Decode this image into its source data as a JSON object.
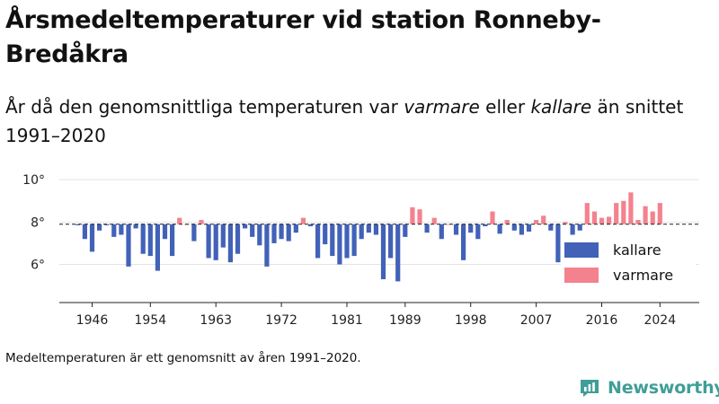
{
  "header": {
    "title": "Årsmedeltemperaturer vid station Ronneby-Bredåkra",
    "subtitle_parts": [
      "År då den genomsnittliga temperaturen var ",
      "varmare",
      " eller ",
      "kallare",
      " än snittet 1991–2020"
    ]
  },
  "footnote": "Medeltemperaturen är ett genomsnitt av åren 1991–2020.",
  "brand": {
    "name": "Newsworthy"
  },
  "colors": {
    "kallare": "#4262b8",
    "varmare": "#f4828e",
    "baseline": "#333333",
    "grid": "#e4e4e4"
  },
  "chart_data": {
    "type": "bar",
    "title": "Årsmedeltemperaturer vid station Ronneby-Bredåkra",
    "baseline": 7.9,
    "ylim": [
      4.2,
      10.6
    ],
    "yticks": [
      6,
      8,
      10
    ],
    "ytick_labels": [
      "6°",
      "8°",
      "10°"
    ],
    "xticks": [
      1946,
      1954,
      1963,
      1972,
      1981,
      1989,
      1998,
      2007,
      2016,
      2024
    ],
    "legend": {
      "placement": "right",
      "entries": [
        {
          "key": "kallare",
          "label": "kallare"
        },
        {
          "key": "varmare",
          "label": "varmare"
        }
      ]
    },
    "grid": true,
    "years": [
      1944,
      1945,
      1946,
      1947,
      1948,
      1949,
      1950,
      1951,
      1952,
      1953,
      1954,
      1955,
      1956,
      1957,
      1958,
      1959,
      1960,
      1961,
      1962,
      1963,
      1964,
      1965,
      1966,
      1967,
      1968,
      1969,
      1970,
      1971,
      1972,
      1973,
      1974,
      1975,
      1976,
      1977,
      1978,
      1979,
      1980,
      1981,
      1982,
      1983,
      1984,
      1985,
      1986,
      1987,
      1988,
      1989,
      1990,
      1991,
      1992,
      1993,
      1994,
      1995,
      1996,
      1997,
      1998,
      1999,
      2000,
      2001,
      2002,
      2003,
      2004,
      2005,
      2006,
      2007,
      2008,
      2009,
      2010,
      2011,
      2012,
      2013,
      2014,
      2015,
      2016,
      2017,
      2018,
      2019,
      2020,
      2021,
      2022,
      2023,
      2024
    ],
    "values": [
      7.85,
      7.2,
      6.6,
      7.6,
      7.85,
      7.3,
      7.4,
      5.9,
      7.7,
      6.5,
      6.4,
      5.7,
      7.2,
      6.4,
      8.2,
      7.9,
      7.1,
      8.1,
      6.3,
      6.2,
      6.8,
      6.1,
      6.5,
      7.7,
      7.3,
      6.9,
      5.9,
      7.0,
      7.2,
      7.1,
      7.5,
      8.2,
      7.8,
      6.3,
      6.95,
      6.4,
      6.0,
      6.3,
      6.4,
      7.2,
      7.5,
      7.4,
      5.3,
      6.3,
      5.2,
      7.3,
      8.7,
      8.6,
      7.5,
      8.2,
      7.2,
      7.9,
      7.4,
      6.2,
      7.5,
      7.2,
      7.8,
      8.5,
      7.45,
      8.1,
      7.6,
      7.4,
      7.55,
      8.1,
      8.3,
      7.6,
      6.1,
      8.0,
      7.4,
      7.6,
      8.9,
      8.5,
      8.2,
      8.25,
      8.9,
      9.0,
      9.4,
      8.1,
      8.75,
      8.5,
      8.9
    ]
  }
}
